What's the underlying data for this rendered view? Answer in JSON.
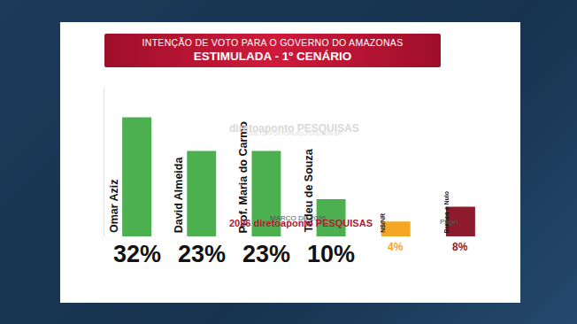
{
  "chart_data": {
    "type": "bar",
    "title": "INTENÇÃO DE VOTO PARA O GOVERNO DO AMAZONAS",
    "subtitle": "ESTIMULADA - 1º CENÁRIO",
    "categories": [
      "Omar Aziz",
      "David Almeida",
      "Prof. Maria do Carmo",
      "Tadeu de Souza",
      "NS/NR",
      "Branco e Nulo"
    ],
    "values": [
      32,
      23,
      23,
      10,
      4,
      8
    ],
    "value_labels": [
      "32%",
      "23%",
      "23%",
      "10%",
      "4%",
      "8%"
    ],
    "colors": [
      "#4caf50",
      "#4caf50",
      "#4caf50",
      "#4caf50",
      "#f5a623",
      "#8e1b2c"
    ],
    "ylim": [
      0,
      40
    ],
    "data_labels": true,
    "tick_labels": false,
    "grid": false,
    "annotations": [
      "MARÇO DE 2026",
      "diretoaponto PESQUISAS",
      "DIRETOAPONTOPESQUISAS.COM.BR",
      "2026 diretoaponto PESQUISAS",
      "Págin"
    ]
  }
}
